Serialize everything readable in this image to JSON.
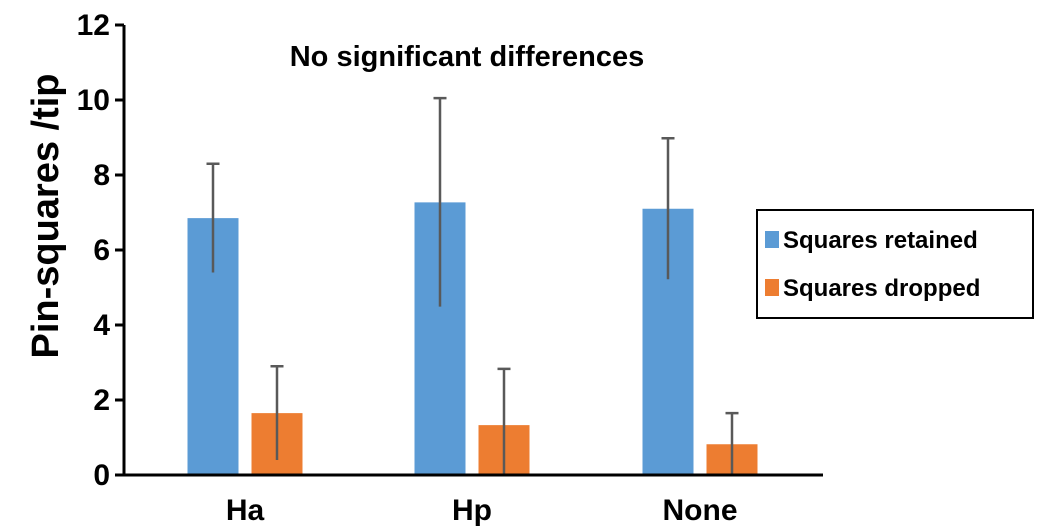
{
  "chart_data": {
    "type": "bar",
    "categories": [
      "Ha",
      "Hp",
      "None"
    ],
    "series": [
      {
        "name": "Squares retained",
        "color": "#5b9bd5",
        "values": [
          6.85,
          7.27,
          7.1
        ],
        "error": [
          1.45,
          2.78,
          1.88
        ]
      },
      {
        "name": "Squares dropped",
        "color": "#ed7d31",
        "values": [
          1.65,
          1.33,
          0.82
        ],
        "error": [
          1.25,
          1.5,
          0.83
        ]
      }
    ],
    "title": "",
    "annotation": "No significant differences",
    "xlabel": "",
    "ylabel": "Pin-squares /tip",
    "ylim": [
      0,
      12
    ],
    "yticks": [
      0,
      2,
      4,
      6,
      8,
      10,
      12
    ],
    "grid": false,
    "error_bar_color": "#595959",
    "legend_position": "right"
  }
}
